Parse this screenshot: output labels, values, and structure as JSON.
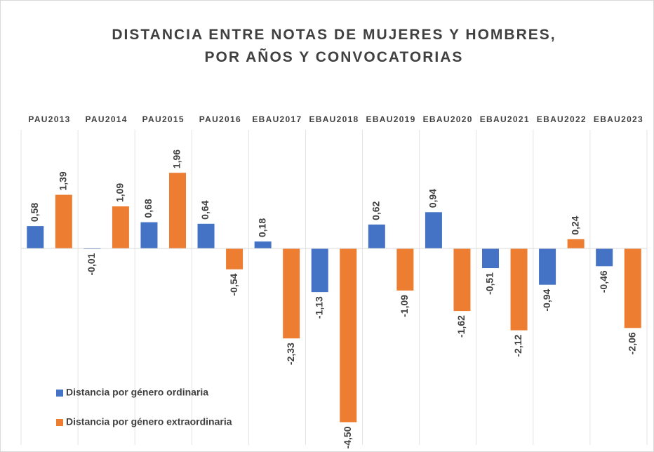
{
  "chart_data": {
    "type": "bar",
    "title": [
      "DISTANCIA ENTRE NOTAS DE MUJERES Y HOMBRES,",
      "POR AÑOS Y CONVOCATORIAS"
    ],
    "categories": [
      "PAU2013",
      "PAU2014",
      "PAU2015",
      "PAU2016",
      "EBAU2017",
      "EBAU2018",
      "EBAU2019",
      "EBAU2020",
      "EBAU2021",
      "EBAU2022",
      "EBAU2023"
    ],
    "series": [
      {
        "name": "Distancia por género ordinaria",
        "color": "#4472c4",
        "values": [
          0.58,
          -0.01,
          0.68,
          0.64,
          0.18,
          -1.13,
          0.62,
          0.94,
          -0.51,
          -0.94,
          -0.46
        ],
        "value_labels": [
          "0,58",
          "-0,01",
          "0,68",
          "0,64",
          "0,18",
          "-1,13",
          "0,62",
          "0,94",
          "-0,51",
          "-0,94",
          "-0,46"
        ]
      },
      {
        "name": "Distancia por género extraordinaria",
        "color": "#ed7d31",
        "values": [
          1.39,
          1.09,
          1.96,
          -0.54,
          -2.33,
          -4.5,
          -1.09,
          -1.62,
          -2.12,
          0.24,
          -2.06
        ],
        "value_labels": [
          "1,39",
          "1,09",
          "1,96",
          "-0,54",
          "-2,33",
          "-4,50",
          "-1,09",
          "-1,62",
          "-2,12",
          "0,24",
          "-2,06"
        ]
      }
    ],
    "ylim": [
      -5,
      2
    ]
  }
}
